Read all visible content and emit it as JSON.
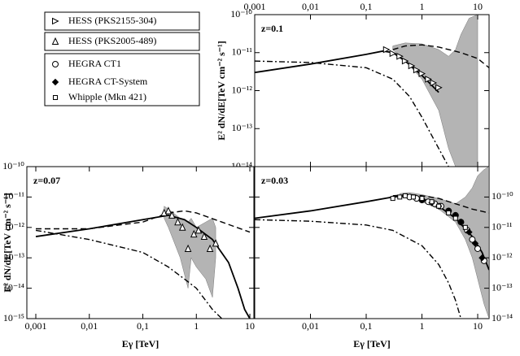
{
  "chart_data": [
    {
      "type": "line",
      "annotation": "z=0.1",
      "ylabel": "E² dN/dE[TeV cm⁻² s⁻¹]",
      "xscale": "log",
      "yscale": "log",
      "xtick_side": "top",
      "ytick_side": "left",
      "xlim": [
        0.001,
        16
      ],
      "ylim": [
        1e-14,
        1e-10
      ],
      "xticks": [
        {
          "value": 0.001,
          "label": "0,001"
        },
        {
          "value": 0.01,
          "label": "0,01"
        },
        {
          "value": 0.1,
          "label": "0,1"
        },
        1,
        10
      ],
      "yticks": [
        {
          "value": 1e-14,
          "label": "10⁻¹⁴"
        },
        {
          "value": 1e-13,
          "label": "10⁻¹³"
        },
        {
          "value": 1e-12,
          "label": "10⁻¹²"
        },
        {
          "value": 1e-11,
          "label": "10⁻¹¹"
        },
        {
          "value": 1e-10,
          "label": "10⁻¹⁰"
        }
      ],
      "series": [
        {
          "style": "band",
          "color": "#777777",
          "x": [
            0.3,
            0.5,
            1,
            2,
            3,
            4,
            5,
            7,
            10
          ],
          "upper": [
            1.5e-11,
            1.8e-11,
            1.7e-11,
            1.2e-11,
            8e-12,
            1.2e-11,
            3e-11,
            8e-11,
            1e-10
          ],
          "lower": [
            1.2e-11,
            6e-12,
            2e-12,
            3e-13,
            3e-14,
            1e-14,
            1e-14,
            1e-14,
            1e-14
          ]
        },
        {
          "style": "solid",
          "color": "#000000",
          "x": [
            0.001,
            0.01,
            0.1,
            0.2,
            0.3,
            0.5,
            1,
            2
          ],
          "values": [
            3e-12,
            5e-12,
            9e-12,
            1.1e-11,
            1e-11,
            6e-12,
            2.5e-12,
            9e-13
          ]
        },
        {
          "style": "dashed",
          "color": "#000000",
          "x": [
            0.3,
            0.5,
            1,
            2,
            5,
            10,
            16
          ],
          "values": [
            1.2e-11,
            1.5e-11,
            1.6e-11,
            1.4e-11,
            1e-11,
            7e-12,
            4e-12
          ]
        },
        {
          "style": "dashdot",
          "color": "#000000",
          "x": [
            0.001,
            0.01,
            0.1,
            0.3,
            0.6,
            1,
            2,
            3
          ],
          "values": [
            6e-12,
            5.5e-12,
            4e-12,
            2e-12,
            7e-13,
            2e-13,
            3e-14,
            1e-14
          ]
        },
        {
          "style": "marker",
          "marker": "triangle-right",
          "name": "HESS (PKS2155-304)",
          "color": "#000000",
          "x": [
            0.23,
            0.3,
            0.4,
            0.5,
            0.65,
            0.8,
            1,
            1.3,
            1.6,
            2
          ],
          "values": [
            1.2e-11,
            9.5e-12,
            8e-12,
            6e-12,
            4.5e-12,
            3.5e-12,
            2.8e-12,
            2e-12,
            1.6e-12,
            1.2e-12
          ]
        }
      ]
    },
    {
      "type": "line",
      "annotation": "z=0.07",
      "ylabel": "E² dN/dE[TeV cm⁻² s⁻¹]",
      "xlabel": "Eγ [TeV]",
      "xscale": "log",
      "yscale": "log",
      "xtick_side": "bottom",
      "ytick_side": "left",
      "xlim": [
        0.00068,
        11.9
      ],
      "ylim": [
        1e-15,
        1e-10
      ],
      "xticks": [
        {
          "value": 0.001,
          "label": "0,001"
        },
        {
          "value": 0.01,
          "label": "0,01"
        },
        {
          "value": 0.1,
          "label": "0,1"
        },
        1,
        10
      ],
      "yticks": [
        {
          "value": 1e-15,
          "label": "10⁻¹⁵"
        },
        {
          "value": 1e-14,
          "label": "10⁻¹⁴"
        },
        {
          "value": 1e-13,
          "label": "10⁻¹³"
        },
        {
          "value": 1e-12,
          "label": "10⁻¹²"
        },
        {
          "value": 1e-11,
          "label": "10⁻¹¹"
        },
        {
          "value": 1e-10,
          "label": "10⁻¹⁰"
        }
      ],
      "series": [
        {
          "style": "band",
          "color": "#777777",
          "x": [
            0.25,
            0.3,
            0.5,
            0.7,
            0.8,
            1,
            1.5,
            2,
            2.3
          ],
          "upper": [
            5e-12,
            4e-12,
            2e-12,
            1.5e-12,
            2e-12,
            1e-12,
            1.5e-12,
            2e-12,
            1e-12
          ],
          "lower": [
            2e-12,
            1e-12,
            1e-13,
            1e-14,
            1e-13,
            5e-14,
            2e-14,
            5e-15,
            1e-13
          ]
        },
        {
          "style": "solid",
          "color": "#000000",
          "x": [
            0.001,
            0.01,
            0.1,
            0.3,
            0.6,
            1,
            2,
            4,
            6,
            8,
            10
          ],
          "values": [
            5e-13,
            9e-13,
            1.8e-12,
            2.5e-12,
            1.8e-12,
            1e-12,
            4e-13,
            7e-14,
            1e-14,
            2e-15,
            1e-15
          ]
        },
        {
          "style": "dashed",
          "color": "#000000",
          "x": [
            0.001,
            0.01,
            0.1,
            0.3,
            0.6,
            1,
            3,
            10
          ],
          "values": [
            9e-13,
            9e-13,
            1.5e-12,
            3e-12,
            3.5e-12,
            3e-12,
            1.5e-12,
            7e-13
          ]
        },
        {
          "style": "dashdot",
          "color": "#000000",
          "x": [
            0.001,
            0.01,
            0.1,
            0.3,
            0.6,
            1,
            2,
            3
          ],
          "values": [
            8e-13,
            4e-13,
            1.5e-13,
            5e-14,
            2e-14,
            1e-14,
            2e-15,
            1e-15
          ]
        },
        {
          "style": "marker",
          "marker": "triangle-up",
          "name": "HESS (PKS2005-489)",
          "color": "#000000",
          "x": [
            0.25,
            0.3,
            0.35,
            0.45,
            0.55,
            0.7,
            0.9,
            1.1,
            1.4,
            1.8,
            2.3
          ],
          "values": [
            3e-12,
            3.5e-12,
            2.5e-12,
            1.5e-12,
            1e-12,
            2e-13,
            6e-13,
            8e-13,
            5e-13,
            2e-13,
            3e-13
          ]
        }
      ]
    },
    {
      "type": "line",
      "annotation": "z=0.03",
      "xlabel": "Eγ [TeV]",
      "xscale": "log",
      "yscale": "log",
      "xtick_side": "bottom",
      "ytick_side": "right",
      "xlim": [
        0.001,
        16
      ],
      "ylim": [
        1e-14,
        1e-09
      ],
      "xticks": [
        {
          "value": 0.01,
          "label": "0,01"
        },
        {
          "value": 0.1,
          "label": "0,1"
        },
        1,
        10
      ],
      "yticks": [
        {
          "value": 1e-14,
          "label": "10⁻¹⁴"
        },
        {
          "value": 1e-13,
          "label": "10⁻¹³"
        },
        {
          "value": 1e-12,
          "label": "10⁻¹²"
        },
        {
          "value": 1e-11,
          "label": "10⁻¹¹"
        },
        {
          "value": 1e-10,
          "label": "10⁻¹⁰"
        }
      ],
      "series": [
        {
          "style": "band",
          "color": "#777777",
          "x": [
            0.4,
            0.6,
            1,
            2,
            4,
            6,
            8,
            10,
            13,
            16
          ],
          "upper": [
            1.3e-10,
            1.4e-10,
            1.2e-10,
            9e-11,
            6e-11,
            1e-10,
            2e-10,
            5e-10,
            8e-10,
            1e-09
          ],
          "lower": [
            1e-10,
            9e-11,
            7e-11,
            4e-11,
            1.5e-11,
            4e-12,
            1e-12,
            2e-13,
            3e-14,
            1e-14
          ]
        },
        {
          "style": "solid",
          "color": "#000000",
          "x": [
            0.001,
            0.01,
            0.1,
            0.3,
            0.6,
            1,
            2,
            4,
            8,
            12,
            16
          ],
          "values": [
            2e-11,
            3.5e-11,
            7e-11,
            1e-10,
            1.1e-10,
            9e-11,
            5e-11,
            2e-11,
            5e-12,
            1.5e-12,
            4e-13
          ]
        },
        {
          "style": "dashed",
          "color": "#000000",
          "x": [
            0.3,
            0.6,
            1,
            2,
            4,
            8,
            16
          ],
          "values": [
            1.1e-10,
            1.2e-10,
            1.1e-10,
            9e-11,
            6e-11,
            4e-11,
            3e-11
          ]
        },
        {
          "style": "dashdot",
          "color": "#000000",
          "x": [
            0.001,
            0.01,
            0.1,
            0.3,
            1,
            2,
            3,
            4,
            5
          ],
          "values": [
            1.8e-11,
            1.6e-11,
            1.2e-11,
            8e-12,
            2.5e-12,
            6e-13,
            1.5e-13,
            4e-14,
            1e-14
          ]
        },
        {
          "style": "marker",
          "marker": "circle",
          "name": "HEGRA CT1",
          "color": "#000000",
          "x": [
            0.6,
            0.8,
            1,
            1.3,
            1.7,
            2.2,
            3,
            4,
            5,
            6.5,
            8,
            10,
            13
          ],
          "values": [
            1e-10,
            9e-11,
            8e-11,
            7e-11,
            6e-11,
            5e-11,
            3.5e-11,
            2.5e-11,
            1.5e-11,
            8e-12,
            4e-12,
            2e-12,
            8e-13
          ]
        },
        {
          "style": "marker",
          "marker": "diamond",
          "name": "HEGRA CT-System",
          "color": "#000000",
          "x": [
            1,
            1.5,
            2,
            3,
            4,
            5,
            7,
            9,
            12
          ],
          "values": [
            8e-11,
            6.5e-11,
            5e-11,
            3.5e-11,
            2.5e-11,
            1.5e-11,
            7e-12,
            3e-12,
            1e-12
          ]
        },
        {
          "style": "marker",
          "marker": "square",
          "name": "Whipple (Mkn 421)",
          "color": "#000000",
          "x": [
            0.3,
            0.4,
            0.5,
            0.7,
            1,
            1.5,
            2,
            3,
            4,
            6
          ],
          "values": [
            9e-11,
            1e-10,
            1.1e-10,
            1e-10,
            9e-11,
            7e-11,
            5e-11,
            3e-11,
            2e-11,
            1e-11
          ]
        }
      ]
    }
  ]
}
